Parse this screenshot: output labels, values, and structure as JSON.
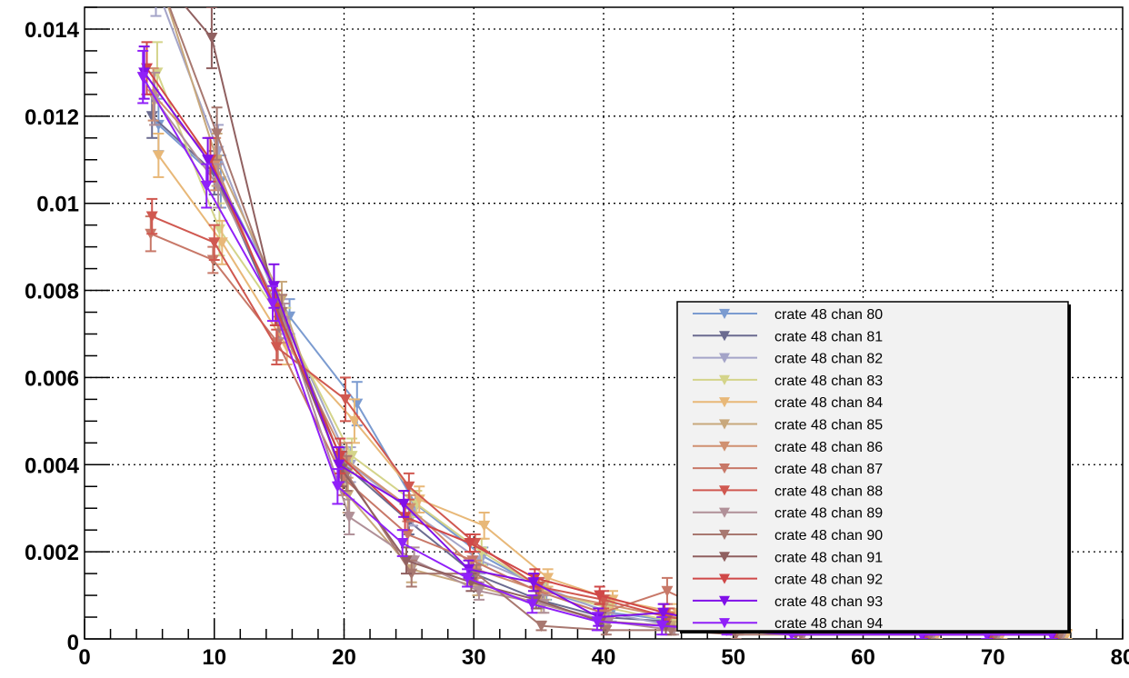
{
  "chart_data": {
    "type": "line",
    "title": "",
    "xlabel": "",
    "ylabel": "",
    "xlim": [
      0,
      80
    ],
    "ylim": [
      0,
      0.0145
    ],
    "grid": true,
    "error_bars": true,
    "legend_position": "bottom-right",
    "x_ticks": [
      {
        "value": 0,
        "label": "0"
      },
      {
        "value": 10,
        "label": "10"
      },
      {
        "value": 20,
        "label": "20"
      },
      {
        "value": 30,
        "label": "30"
      },
      {
        "value": 40,
        "label": "40"
      },
      {
        "value": 50,
        "label": "50"
      },
      {
        "value": 60,
        "label": "60"
      },
      {
        "value": 70,
        "label": "70"
      },
      {
        "value": 80,
        "label": "80"
      }
    ],
    "y_ticks": [
      {
        "value": 0,
        "label": "0"
      },
      {
        "value": 0.002,
        "label": "0.002"
      },
      {
        "value": 0.004,
        "label": "0.004"
      },
      {
        "value": 0.006,
        "label": "0.006"
      },
      {
        "value": 0.008,
        "label": "0.008"
      },
      {
        "value": 0.01,
        "label": "0.01"
      },
      {
        "value": 0.012,
        "label": "0.012"
      },
      {
        "value": 0.014,
        "label": "0.014"
      }
    ],
    "series": [
      {
        "name": "crate 48 chan 80",
        "color": "#7b9bd0",
        "x": [
          5.7,
          10.5,
          15.8,
          21,
          25.5,
          30.7,
          35.6,
          40.6,
          45.8,
          51,
          56,
          65.7,
          70.7,
          75.5
        ],
        "y": [
          0.0118,
          0.0105,
          0.0074,
          0.0054,
          0.0031,
          0.0019,
          0.0011,
          0.0006,
          0.0004,
          0.0005,
          0.0003,
          0.0001,
          0.0001,
          0.0001
        ],
        "err": [
          0.0006,
          0.0006,
          0.0004,
          0.0005,
          0.0003,
          0.0002,
          0.0002,
          0.0002,
          0.0002,
          0.0002,
          0.0002,
          0.0001,
          0.0001,
          0.0001
        ]
      },
      {
        "name": "crate 48 chan 81",
        "color": "#6b6b90",
        "x": [
          5.2,
          10,
          15,
          20,
          25,
          30,
          35,
          40,
          45,
          50,
          55,
          65,
          70,
          75
        ],
        "y": [
          0.012,
          0.0107,
          0.0073,
          0.004,
          0.0027,
          0.0015,
          0.0009,
          0.0005,
          0.0004,
          0.0003,
          0.0002,
          0.0001,
          0.0001,
          0.0001
        ],
        "err": [
          0.0005,
          0.0005,
          0.0004,
          0.0004,
          0.0003,
          0.0002,
          0.0002,
          0.0002,
          0.0002,
          0.0001,
          0.0001,
          0.0001,
          0.0001,
          0.0001
        ]
      },
      {
        "name": "crate 48 chan 82",
        "color": "#a4a4c8",
        "x": [
          5.5,
          10.3,
          15.3,
          20.5,
          25.3,
          30.5,
          35.3,
          40.3,
          45.3,
          50.5,
          55.3,
          65.3,
          70.3,
          75.3
        ],
        "y": [
          0.015,
          0.0112,
          0.0074,
          0.004,
          0.0029,
          0.0018,
          0.0012,
          0.0006,
          0.0003,
          0.0004,
          0.0002,
          0.0001,
          0.0001,
          0.0001
        ],
        "err": [
          0.0007,
          0.0006,
          0.0004,
          0.0004,
          0.0003,
          0.0003,
          0.0002,
          0.0002,
          0.0002,
          0.0002,
          0.0001,
          0.0001,
          0.0001,
          0.0001
        ]
      },
      {
        "name": "crate 48 chan 83",
        "color": "#d4d48a",
        "x": [
          5.6,
          10.4,
          15.5,
          20.6,
          25.6,
          30.6,
          35.5,
          40.5,
          45.5,
          50.6,
          55.5,
          65.5,
          70.5,
          75.5
        ],
        "y": [
          0.013,
          0.0094,
          0.0072,
          0.0042,
          0.0031,
          0.002,
          0.0011,
          0.0007,
          0.0004,
          0.0004,
          0.0002,
          0.0001,
          0.0001,
          0.0001
        ],
        "err": [
          0.0007,
          0.0006,
          0.0004,
          0.0004,
          0.0003,
          0.0003,
          0.0002,
          0.0002,
          0.0002,
          0.0002,
          0.0001,
          0.0001,
          0.0001,
          0.0001
        ]
      },
      {
        "name": "crate 48 chan 84",
        "color": "#e8b878",
        "x": [
          5.7,
          10.6,
          15.6,
          20.8,
          25.8,
          30.8,
          35.7,
          40.7,
          45.7,
          50.8,
          55.7,
          65.7,
          70.7,
          75.7
        ],
        "y": [
          0.0111,
          0.0091,
          0.0067,
          0.005,
          0.0032,
          0.0026,
          0.0014,
          0.0009,
          0.0006,
          0.0004,
          0.0002,
          0.0001,
          0.0001,
          0.0001
        ],
        "err": [
          0.0005,
          0.0005,
          0.0004,
          0.0005,
          0.0003,
          0.0003,
          0.0002,
          0.0002,
          0.0002,
          0.0002,
          0.0001,
          0.0001,
          0.0001,
          0.0001
        ]
      },
      {
        "name": "crate 48 chan 85",
        "color": "#c8a87c",
        "x": [
          5.4,
          10.2,
          15.2,
          20.3,
          25.2,
          30.3,
          35.2,
          40.2,
          45.2,
          50.3,
          55.2,
          65.2,
          70.2,
          75.2
        ],
        "y": [
          0.0155,
          0.011,
          0.0078,
          0.0033,
          0.0016,
          0.0012,
          0.0008,
          0.0004,
          0.0003,
          0.0002,
          0.0001,
          0.0001,
          0.0001,
          0.0001
        ],
        "err": [
          0.0007,
          0.0006,
          0.0004,
          0.0004,
          0.0003,
          0.0002,
          0.0002,
          0.0002,
          0.0002,
          0.0001,
          0.0001,
          0.0001,
          0.0001,
          0.0001
        ]
      },
      {
        "name": "crate 48 chan 86",
        "color": "#d09070",
        "x": [
          5.3,
          10.1,
          15.1,
          20.2,
          25.1,
          30.2,
          35.1,
          40.1,
          45.1,
          50.2,
          55.1,
          65.1,
          70.1,
          75.1
        ],
        "y": [
          0.0125,
          0.0109,
          0.0072,
          0.0041,
          0.003,
          0.0016,
          0.0011,
          0.0008,
          0.0005,
          0.0003,
          0.0002,
          0.0001,
          0.0001,
          0.0001
        ],
        "err": [
          0.0006,
          0.0006,
          0.0004,
          0.0004,
          0.0003,
          0.0002,
          0.0002,
          0.0002,
          0.0002,
          0.0001,
          0.0001,
          0.0001,
          0.0001,
          0.0001
        ]
      },
      {
        "name": "crate 48 chan 87",
        "color": "#c87868",
        "x": [
          5.1,
          9.9,
          14.9,
          19.9,
          24.9,
          29.9,
          34.9,
          39.9,
          44.9,
          49.9,
          54.9,
          64.9,
          69.9,
          74.9
        ],
        "y": [
          0.0093,
          0.0087,
          0.0068,
          0.0037,
          0.0024,
          0.0018,
          0.0011,
          0.0006,
          0.0011,
          0.0004,
          0.0002,
          0.0001,
          0.0001,
          0.0001
        ],
        "err": [
          0.0004,
          0.0003,
          0.0004,
          0.0004,
          0.0003,
          0.0002,
          0.0002,
          0.0002,
          0.0003,
          0.0002,
          0.0001,
          0.0001,
          0.0001,
          0.0001
        ]
      },
      {
        "name": "crate 48 chan 88",
        "color": "#d05850",
        "x": [
          5.2,
          10.0,
          14.8,
          20.1,
          25.0,
          30.1,
          35.0,
          40.0,
          45.0,
          50.1,
          55.0,
          65.0,
          70.0,
          75.0
        ],
        "y": [
          0.0097,
          0.0091,
          0.0067,
          0.0055,
          0.0035,
          0.0022,
          0.0012,
          0.0009,
          0.0005,
          0.0003,
          0.0002,
          0.0001,
          0.0001,
          0.0001
        ],
        "err": [
          0.0004,
          0.0004,
          0.0004,
          0.0005,
          0.0003,
          0.0002,
          0.0002,
          0.0002,
          0.0002,
          0.0001,
          0.0001,
          0.0001,
          0.0001,
          0.0001
        ]
      },
      {
        "name": "crate 48 chan 89",
        "color": "#b09098",
        "x": [
          5.4,
          10.3,
          15.4,
          20.4,
          25.4,
          30.4,
          35.4,
          40.4,
          45.4,
          50.4,
          55.4,
          65.4,
          70.4,
          75.4
        ],
        "y": [
          0.0124,
          0.0104,
          0.0073,
          0.0028,
          0.0018,
          0.0011,
          0.0008,
          0.0004,
          0.0002,
          0.0002,
          0.0001,
          0.0001,
          0.0001,
          0.0001
        ],
        "err": [
          0.0006,
          0.0005,
          0.0004,
          0.0004,
          0.0003,
          0.0002,
          0.0002,
          0.0002,
          0.0001,
          0.0001,
          0.0001,
          0.0001,
          0.0001,
          0.0001
        ]
      },
      {
        "name": "crate 48 chan 90",
        "color": "#a87870",
        "x": [
          5.3,
          10.2,
          15.2,
          20.2,
          25.2,
          30.2,
          35.2,
          40.2,
          45.2,
          50.2,
          55.2,
          65.2,
          70.2,
          75.2
        ],
        "y": [
          0.0155,
          0.0116,
          0.0075,
          0.0038,
          0.0015,
          0.0015,
          0.0003,
          0.0002,
          0.0002,
          0.0001,
          0.0001,
          0.0001,
          0.0001,
          0.0001
        ],
        "err": [
          0.0007,
          0.0006,
          0.0004,
          0.0004,
          0.0003,
          0.0002,
          0.0001,
          0.0001,
          0.0001,
          0.0001,
          0.0001,
          0.0001,
          0.0001,
          0.0001
        ]
      },
      {
        "name": "crate 48 chan 91",
        "color": "#906060",
        "x": [
          5.0,
          9.8,
          14.8,
          19.8,
          24.8,
          29.8,
          34.8,
          39.8,
          44.8,
          49.8,
          54.8,
          64.8,
          69.8,
          74.8
        ],
        "y": [
          0.0155,
          0.0138,
          0.0076,
          0.0039,
          0.0018,
          0.0013,
          0.0009,
          0.0004,
          0.0003,
          0.0002,
          0.0001,
          0.0001,
          0.0001,
          0.0001
        ],
        "err": [
          0.0007,
          0.0007,
          0.0004,
          0.0004,
          0.0003,
          0.0002,
          0.0002,
          0.0002,
          0.0002,
          0.0001,
          0.0001,
          0.0001,
          0.0001,
          0.0001
        ]
      },
      {
        "name": "crate 48 chan 92",
        "color": "#d04848",
        "x": [
          4.8,
          9.7,
          14.7,
          19.7,
          24.7,
          29.7,
          34.7,
          39.7,
          44.7,
          49.7,
          54.7,
          64.7,
          69.7,
          74.7
        ],
        "y": [
          0.0131,
          0.011,
          0.0076,
          0.0042,
          0.0028,
          0.0022,
          0.0014,
          0.001,
          0.0006,
          0.0003,
          0.0002,
          0.0001,
          0.0001,
          0.0001
        ],
        "err": [
          0.0006,
          0.0005,
          0.0004,
          0.0004,
          0.0003,
          0.0002,
          0.0002,
          0.0002,
          0.0002,
          0.0001,
          0.0001,
          0.0001,
          0.0001,
          0.0001
        ]
      },
      {
        "name": "crate 48 chan 93",
        "color": "#8010e8",
        "x": [
          4.6,
          9.5,
          14.6,
          19.6,
          24.6,
          29.6,
          34.6,
          39.6,
          44.6,
          49.6,
          54.6,
          64.6,
          69.6,
          74.6
        ],
        "y": [
          0.013,
          0.011,
          0.0081,
          0.004,
          0.0031,
          0.0016,
          0.0013,
          0.0005,
          0.0006,
          0.0003,
          0.0002,
          0.0001,
          0.0001,
          0.0001
        ],
        "err": [
          0.0006,
          0.0005,
          0.0005,
          0.0004,
          0.0003,
          0.0002,
          0.0002,
          0.0002,
          0.0002,
          0.0001,
          0.0001,
          0.0001,
          0.0001,
          0.0001
        ]
      },
      {
        "name": "crate 48 chan 94",
        "color": "#9020f8",
        "x": [
          4.5,
          9.4,
          14.5,
          19.5,
          24.5,
          29.5,
          34.5,
          39.5,
          44.5,
          49.5,
          54.5,
          64.5,
          69.5,
          74.5
        ],
        "y": [
          0.0129,
          0.0104,
          0.0077,
          0.0035,
          0.0022,
          0.0014,
          0.0008,
          0.0004,
          0.0003,
          0.0002,
          0.0001,
          0.0001,
          0.0001,
          0.0001
        ],
        "err": [
          0.0006,
          0.0005,
          0.0004,
          0.0004,
          0.0003,
          0.0002,
          0.0002,
          0.0002,
          0.0002,
          0.0001,
          0.0001,
          0.0001,
          0.0001,
          0.0001
        ]
      }
    ]
  }
}
